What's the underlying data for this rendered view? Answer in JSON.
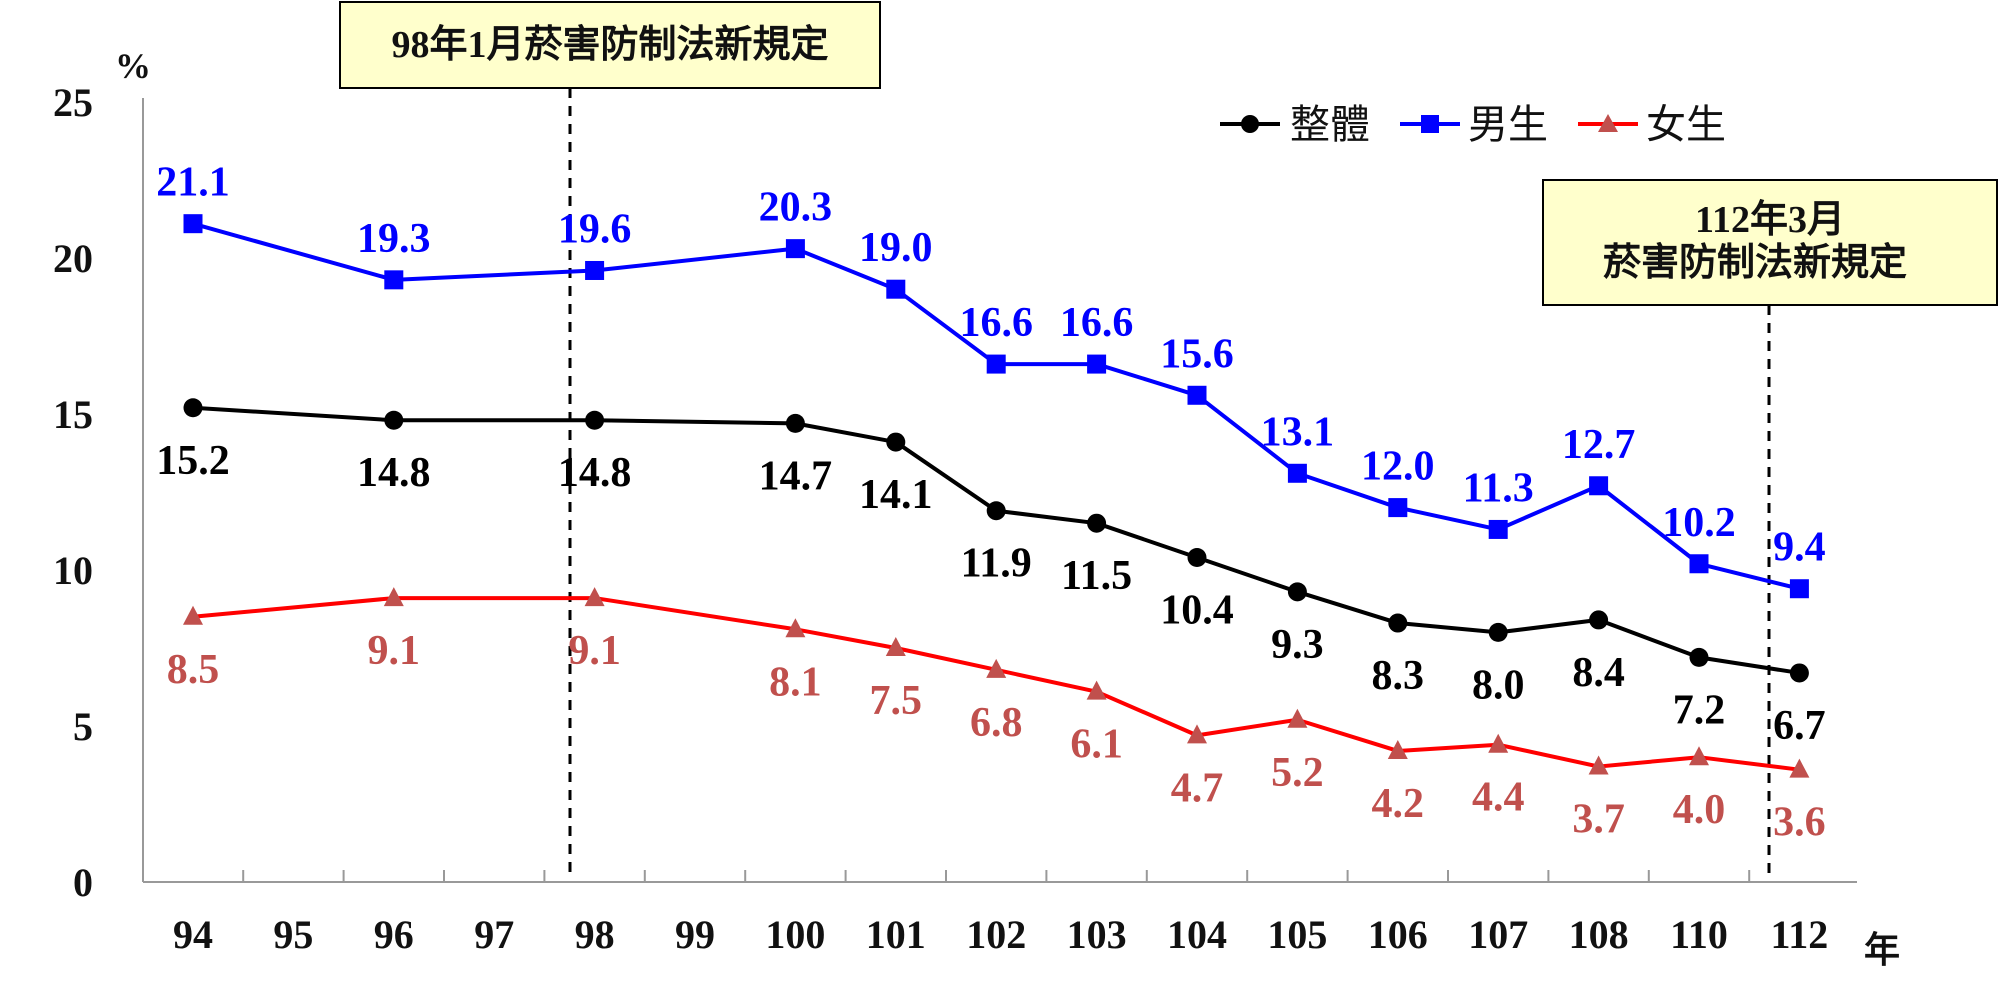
{
  "chart_data": {
    "type": "line",
    "categories": [
      "94",
      "95",
      "96",
      "97",
      "98",
      "99",
      "100",
      "101",
      "102",
      "103",
      "104",
      "105",
      "106",
      "107",
      "108",
      "110",
      "112"
    ],
    "y_unit": "%",
    "x_unit": "年",
    "ylim": [
      0,
      25
    ],
    "yticks": [
      "0",
      "5",
      "10",
      "15",
      "20",
      "25"
    ],
    "grid": false,
    "legend_position": "top-right",
    "series": [
      {
        "name": "整體",
        "color": "#000000",
        "marker": "circle",
        "points": [
          [
            "94",
            15.2
          ],
          [
            "96",
            14.8
          ],
          [
            "98",
            14.8
          ],
          [
            "100",
            14.7
          ],
          [
            "101",
            14.1
          ],
          [
            "102",
            11.9
          ],
          [
            "103",
            11.5
          ],
          [
            "104",
            10.4
          ],
          [
            "105",
            9.3
          ],
          [
            "106",
            8.3
          ],
          [
            "107",
            8.0
          ],
          [
            "108",
            8.4
          ],
          [
            "110",
            7.2
          ],
          [
            "112",
            6.7
          ]
        ],
        "labels": [
          "15.2",
          "14.8",
          "14.8",
          "14.7",
          "14.1",
          "11.9",
          "11.5",
          "10.4",
          "9.3",
          "8.3",
          "8.0",
          "8.4",
          "7.2",
          "6.7"
        ]
      },
      {
        "name": "男生",
        "color": "#0000ff",
        "marker": "square",
        "points": [
          [
            "94",
            21.1
          ],
          [
            "96",
            19.3
          ],
          [
            "98",
            19.6
          ],
          [
            "100",
            20.3
          ],
          [
            "101",
            19.0
          ],
          [
            "102",
            16.6
          ],
          [
            "103",
            16.6
          ],
          [
            "104",
            15.6
          ],
          [
            "105",
            13.1
          ],
          [
            "106",
            12.0
          ],
          [
            "107",
            11.3
          ],
          [
            "108",
            12.7
          ],
          [
            "110",
            10.2
          ],
          [
            "112",
            9.4
          ]
        ],
        "labels": [
          "21.1",
          "19.3",
          "19.6",
          "20.3",
          "19.0",
          "16.6",
          "16.6",
          "15.6",
          "13.1",
          "12.0",
          "11.3",
          "12.7",
          "10.2",
          "9.4"
        ]
      },
      {
        "name": "女生",
        "color": "#ff0000",
        "label_color": "#c0504d",
        "marker": "triangle",
        "points": [
          [
            "94",
            8.5
          ],
          [
            "96",
            9.1
          ],
          [
            "98",
            9.1
          ],
          [
            "100",
            8.1
          ],
          [
            "101",
            7.5
          ],
          [
            "102",
            6.8
          ],
          [
            "103",
            6.1
          ],
          [
            "104",
            4.7
          ],
          [
            "105",
            5.2
          ],
          [
            "106",
            4.2
          ],
          [
            "107",
            4.4
          ],
          [
            "108",
            3.7
          ],
          [
            "110",
            4.0
          ],
          [
            "112",
            3.6
          ]
        ],
        "labels": [
          "8.5",
          "9.1",
          "9.1",
          "8.1",
          "7.5",
          "6.8",
          "6.1",
          "4.7",
          "5.2",
          "4.2",
          "4.4",
          "3.7",
          "4.0",
          "3.6"
        ]
      }
    ],
    "annotations": [
      {
        "lines": [
          "98年1月菸害防制法新規定"
        ]
      },
      {
        "lines": [
          "112年3月",
          "菸害防制法新規定"
        ]
      }
    ]
  }
}
